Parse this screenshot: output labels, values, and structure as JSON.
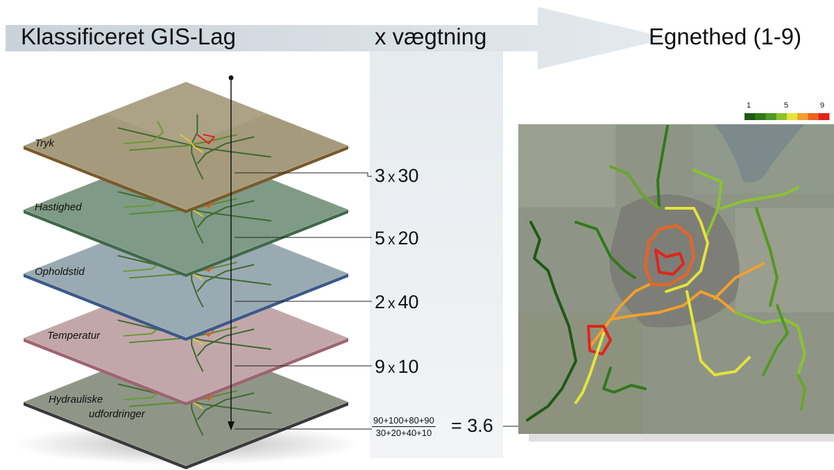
{
  "header": {
    "left": "Klassificeret GIS-Lag",
    "middle": "x vægtning",
    "right": "Egnethed (1-9)"
  },
  "layers": [
    {
      "name": "Tryk",
      "score": "3",
      "weight": "30",
      "color": "#7a5a2a"
    },
    {
      "name": "Hastighed",
      "score": "5",
      "weight": "20",
      "color": "#3f6a4a"
    },
    {
      "name": "Opholdstid",
      "score": "2",
      "weight": "40",
      "color": "#3a5a8c"
    },
    {
      "name": "Temperatur",
      "score": "9",
      "weight": "10",
      "color": "#a06272"
    },
    {
      "name": "Hydrauliske",
      "name2": "udfordringer",
      "color": "#3a3a3a"
    }
  ],
  "multiply_sign": "x",
  "formula": {
    "numerator": "90+100+80+90",
    "denominator": "30+20+40+10",
    "result": "= 3.6"
  },
  "legend": {
    "ticks": [
      "1",
      "5",
      "9"
    ],
    "colors": [
      "#1d5a12",
      "#2f7a1a",
      "#4f9a22",
      "#8cc230",
      "#e4e43a",
      "#f2a02c",
      "#ea6420",
      "#e02418"
    ]
  }
}
